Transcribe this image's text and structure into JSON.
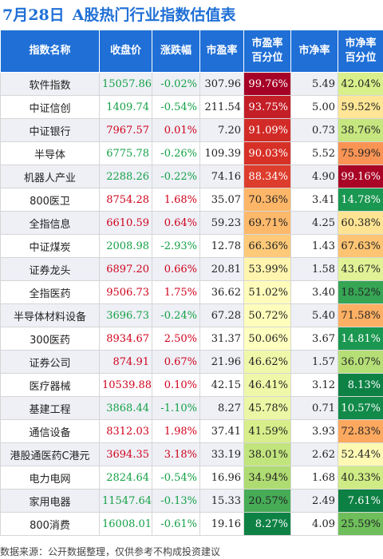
{
  "header": {
    "date": "7月28日",
    "title": "A股热门行业指数估值表"
  },
  "columns": [
    "指数名称",
    "收盘价",
    "涨跌幅",
    "市盈率",
    "市盈率\n百分位",
    "市净率",
    "市净率\n百分位"
  ],
  "rows": [
    {
      "name": "软件指数",
      "close": "15057.86",
      "change": "-0.02%",
      "pe": "307.96",
      "pe_pct": "99.76%",
      "pb": "5.49",
      "pb_pct": "42.04%"
    },
    {
      "name": "中证信创",
      "close": "1409.74",
      "change": "-0.54%",
      "pe": "211.54",
      "pe_pct": "93.75%",
      "pb": "5.00",
      "pb_pct": "59.52%"
    },
    {
      "name": "中证银行",
      "close": "7967.57",
      "change": "0.01%",
      "pe": "7.20",
      "pe_pct": "91.09%",
      "pb": "0.73",
      "pb_pct": "38.76%"
    },
    {
      "name": "半导体",
      "close": "6775.78",
      "change": "-0.26%",
      "pe": "109.39",
      "pe_pct": "90.03%",
      "pb": "5.52",
      "pb_pct": "75.99%"
    },
    {
      "name": "机器人产业",
      "close": "2288.26",
      "change": "-0.22%",
      "pe": "74.16",
      "pe_pct": "88.34%",
      "pb": "4.90",
      "pb_pct": "99.16%"
    },
    {
      "name": "800医卫",
      "close": "8754.28",
      "change": "1.68%",
      "pe": "35.07",
      "pe_pct": "70.36%",
      "pb": "3.41",
      "pb_pct": "14.78%"
    },
    {
      "name": "全指信息",
      "close": "6610.59",
      "change": "0.64%",
      "pe": "59.23",
      "pe_pct": "69.71%",
      "pb": "4.25",
      "pb_pct": "60.38%"
    },
    {
      "name": "中证煤炭",
      "close": "2008.98",
      "change": "-2.93%",
      "pe": "12.78",
      "pe_pct": "66.36%",
      "pb": "1.43",
      "pb_pct": "67.63%"
    },
    {
      "name": "证券龙头",
      "close": "6897.20",
      "change": "0.66%",
      "pe": "20.81",
      "pe_pct": "53.99%",
      "pb": "1.58",
      "pb_pct": "43.67%"
    },
    {
      "name": "全指医药",
      "close": "9506.73",
      "change": "1.75%",
      "pe": "36.62",
      "pe_pct": "51.02%",
      "pb": "3.40",
      "pb_pct": "18.52%"
    },
    {
      "name": "半导体材料设备",
      "close": "3696.73",
      "change": "-0.24%",
      "pe": "67.28",
      "pe_pct": "50.72%",
      "pb": "5.40",
      "pb_pct": "71.58%"
    },
    {
      "name": "300医药",
      "close": "8934.67",
      "change": "2.50%",
      "pe": "31.37",
      "pe_pct": "50.06%",
      "pb": "3.67",
      "pb_pct": "14.81%"
    },
    {
      "name": "证券公司",
      "close": "874.91",
      "change": "0.67%",
      "pe": "21.96",
      "pe_pct": "46.62%",
      "pb": "1.57",
      "pb_pct": "36.07%"
    },
    {
      "name": "医疗器械",
      "close": "10539.88",
      "change": "0.10%",
      "pe": "42.15",
      "pe_pct": "46.41%",
      "pb": "3.12",
      "pb_pct": "8.13%"
    },
    {
      "name": "基建工程",
      "close": "3868.44",
      "change": "-1.10%",
      "pe": "8.27",
      "pe_pct": "45.78%",
      "pb": "0.71",
      "pb_pct": "10.57%"
    },
    {
      "name": "通信设备",
      "close": "8312.03",
      "change": "1.98%",
      "pe": "37.41",
      "pe_pct": "41.59%",
      "pb": "3.93",
      "pb_pct": "72.83%"
    },
    {
      "name": "港股通医药C港元",
      "close": "3694.35",
      "change": "3.18%",
      "pe": "33.19",
      "pe_pct": "38.01%",
      "pb": "2.62",
      "pb_pct": "52.44%"
    },
    {
      "name": "电力电网",
      "close": "2824.64",
      "change": "-0.54%",
      "pe": "16.96",
      "pe_pct": "34.94%",
      "pb": "1.68",
      "pb_pct": "40.33%"
    },
    {
      "name": "家用电器",
      "close": "11547.64",
      "change": "-0.13%",
      "pe": "15.33",
      "pe_pct": "20.57%",
      "pb": "2.49",
      "pb_pct": "7.61%"
    },
    {
      "name": "800消费",
      "close": "16008.01",
      "change": "-0.61%",
      "pe": "19.16",
      "pe_pct": "8.27%",
      "pb": "4.09",
      "pb_pct": "25.59%"
    }
  ],
  "footer": {
    "source": "数据来源：公开数据整理，仅供参考不构成投资建议"
  },
  "colors": {
    "header_bg": "#1f6fd6",
    "title": "#1f6fd6",
    "up": "#d0021b",
    "down": "#14a045",
    "heat_high": "#a50026",
    "heat_mid": "#ffffbf",
    "heat_low": "#006837"
  }
}
